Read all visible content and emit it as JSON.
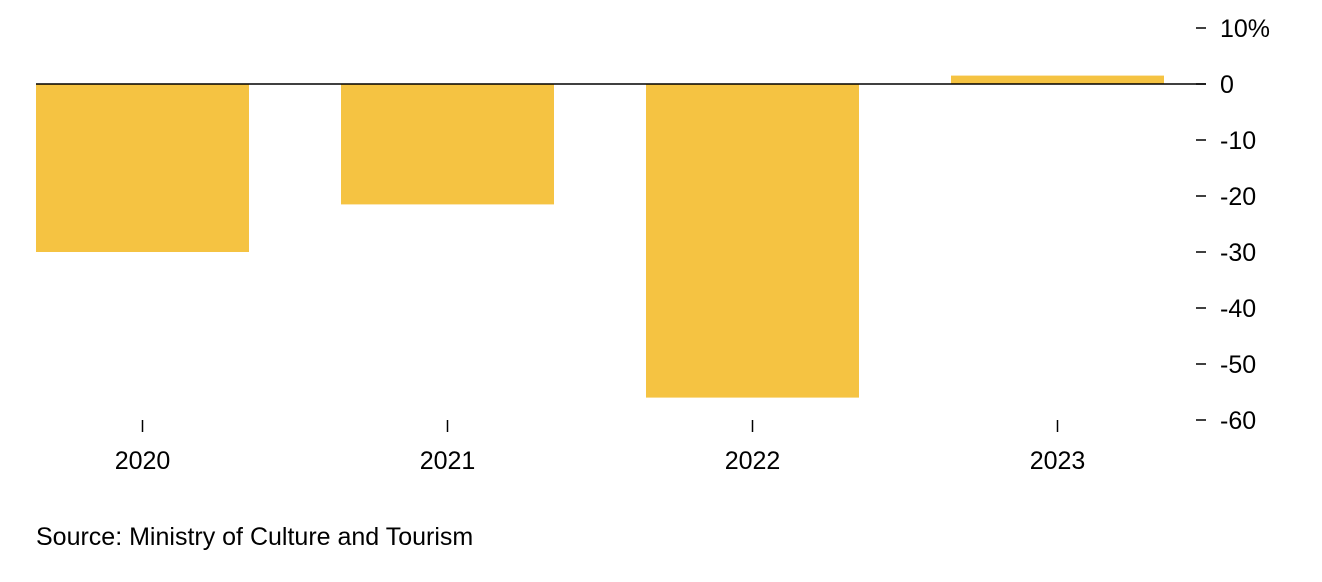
{
  "chart_data": {
    "type": "bar",
    "categories": [
      "2020",
      "2021",
      "2022",
      "2023"
    ],
    "values": [
      -30,
      -21.5,
      -56,
      1.5
    ],
    "title": "",
    "xlabel": "",
    "ylabel": "",
    "ylim": [
      -60,
      10
    ],
    "yticks": [
      10,
      0,
      -10,
      -20,
      -30,
      -40,
      -50,
      -60
    ],
    "ytick_labels": [
      "10%",
      "0",
      "-10",
      "-20",
      "-30",
      "-40",
      "-50",
      "-60"
    ],
    "y_axis_position": "right",
    "grid": false,
    "legend": "none",
    "bar_color": "#F5C342",
    "zero_line_color": "#000000"
  },
  "source": {
    "text": "Source: Ministry of Culture and Tourism"
  }
}
